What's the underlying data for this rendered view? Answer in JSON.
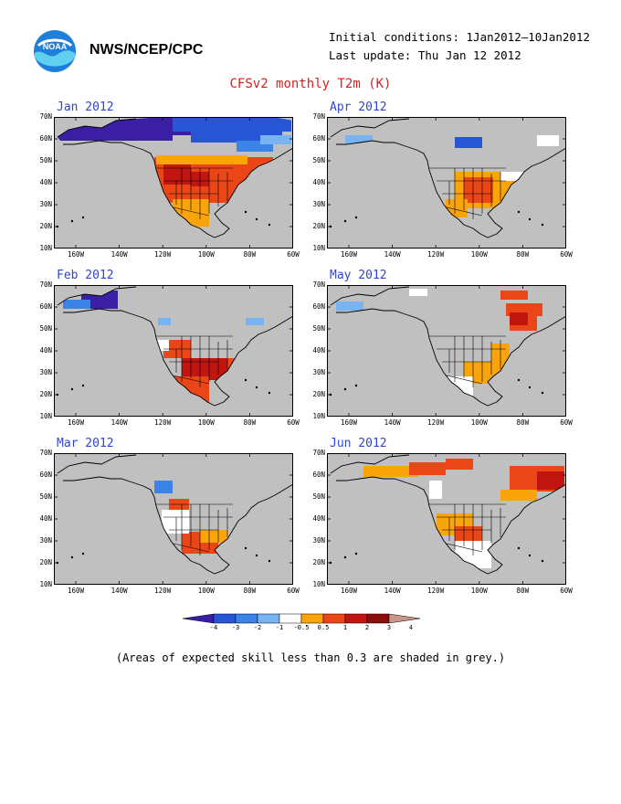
{
  "header": {
    "agency": "NWS/NCEP/CPC",
    "initial_conditions": "Initial conditions: 1Jan2012–10Jan2012",
    "last_update": "Last update: Thu Jan 12 2012",
    "title": "CFSv2 monthly T2m (K)",
    "logo_text": "NOAA"
  },
  "axes": {
    "lat_ticks": [
      "70N",
      "60N",
      "50N",
      "40N",
      "30N",
      "20N",
      "10N"
    ],
    "lon_ticks": [
      "160W",
      "140W",
      "120W",
      "100W",
      "80W",
      "60W"
    ]
  },
  "panels": [
    {
      "title": "Jan 2012"
    },
    {
      "title": "Apr 2012"
    },
    {
      "title": "Feb 2012"
    },
    {
      "title": "May 2012"
    },
    {
      "title": "Mar 2012"
    },
    {
      "title": "Jun 2012"
    }
  ],
  "colorbar": {
    "labels": [
      "-4",
      "-3",
      "-2",
      "-1",
      "-0.5",
      "0.5",
      "1",
      "2",
      "3",
      "4"
    ],
    "colors": [
      "#3a1ea3",
      "#2854d6",
      "#3b83e6",
      "#78b4f2",
      "#ffffff",
      "#f8a40a",
      "#ea4617",
      "#c11512",
      "#8a0e0e",
      "#c9968a"
    ]
  },
  "note": "(Areas of expected skill less than 0.3 are shaded in grey.)",
  "colors": {
    "land_grey": "#c0c0c0",
    "title_red": "#d6201e",
    "panel_title_blue": "#2f44d8"
  }
}
